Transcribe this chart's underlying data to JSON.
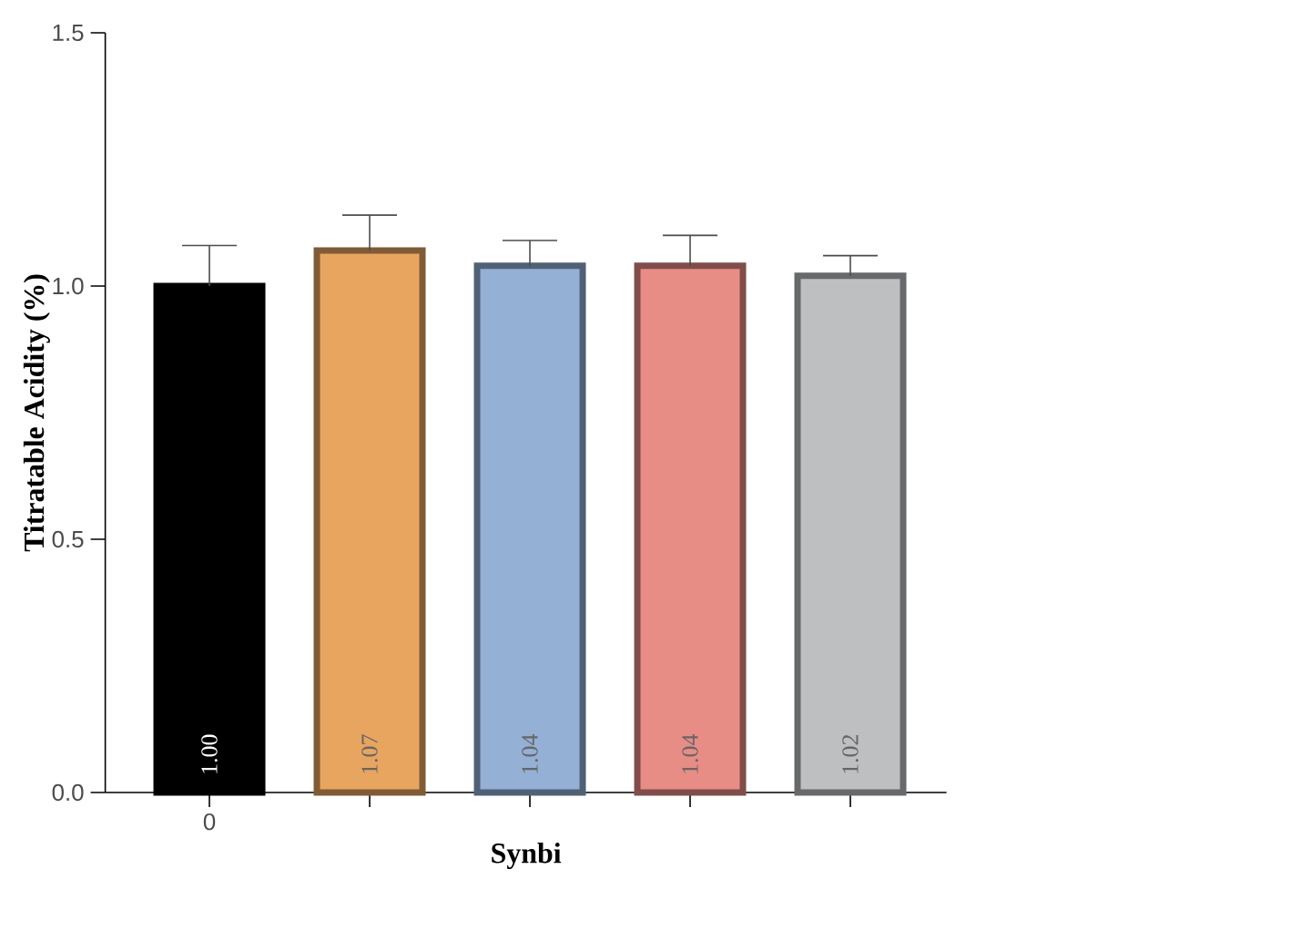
{
  "chart_data": {
    "type": "bar",
    "ylabel": "Titratable Acidity (%)",
    "xlabel": "Synbi",
    "categories": [
      "0",
      null,
      null,
      null,
      null
    ],
    "values": [
      1.0,
      1.07,
      1.04,
      1.04,
      1.02
    ],
    "errors": [
      0.08,
      0.07,
      0.05,
      0.06,
      0.04
    ],
    "value_labels": [
      "1.00",
      "1.07",
      "1.04",
      "1.04",
      "1.02"
    ],
    "colors": [
      "#000000",
      "#e8a560",
      "#94b0d4",
      "#e88c86",
      "#bdbfc0"
    ],
    "ylim": [
      0,
      1.5
    ],
    "yticks": [
      {
        "value": 0,
        "label": "0.0"
      },
      {
        "value": 0.5,
        "label": "0.5"
      },
      {
        "value": 1,
        "label": "1.0"
      },
      {
        "value": 1.5,
        "label": "1.5"
      }
    ]
  }
}
